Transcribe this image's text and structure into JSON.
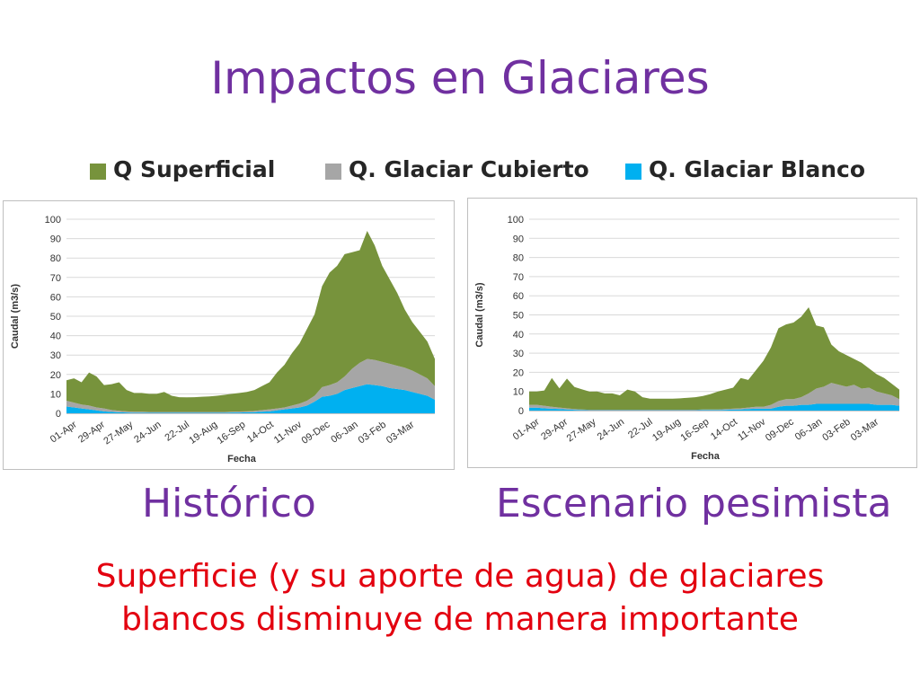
{
  "slide": {
    "title": "Impactos en Glaciares",
    "caption_left": "Histórico",
    "caption_right": "Escenario pesimista",
    "note_line1": "Superficie (y su aporte de agua) de glaciares",
    "note_line2": "blancos disminuye de manera importante"
  },
  "legend": [
    {
      "name": "Q Superficial",
      "color": "#77933c"
    },
    {
      "name": "Q. Glaciar Cubierto",
      "color": "#a6a6a6"
    },
    {
      "name": "Q. Glaciar Blanco",
      "color": "#00b0f0"
    }
  ],
  "chart_data": [
    {
      "type": "area",
      "stacked": true,
      "xlabel": "Fecha",
      "ylabel": "Caudal (m3/s)",
      "ylim": [
        0,
        100
      ],
      "yticks": [
        0,
        10,
        20,
        30,
        40,
        50,
        60,
        70,
        80,
        90,
        100
      ],
      "grid": true,
      "tick_labels": [
        "01-Apr",
        "29-Apr",
        "27-May",
        "24-Jun",
        "22-Jul",
        "19-Aug",
        "16-Sep",
        "14-Oct",
        "11-Nov",
        "09-Dec",
        "06-Jan",
        "03-Feb",
        "03-Mar"
      ],
      "series": [
        {
          "name": "Q. Glaciar Blanco",
          "color": "#00b0f0",
          "values": [
            3.5,
            3,
            2.5,
            2,
            1.5,
            1,
            0.7,
            0.5,
            0.4,
            0.3,
            0.3,
            0.3,
            0.3,
            0.3,
            0.3,
            0.3,
            0.3,
            0.3,
            0.3,
            0.3,
            0.3,
            0.3,
            0.4,
            0.4,
            0.5,
            0.6,
            0.8,
            1,
            1.5,
            2,
            2.5,
            3,
            4,
            6,
            8.5,
            9,
            10,
            12,
            13,
            14,
            15,
            14.5,
            14,
            13,
            12.5,
            12,
            11,
            10,
            9,
            7
          ]
        },
        {
          "name": "Q. Glaciar Cubierto",
          "color": "#a6a6a6",
          "values": [
            3,
            2.5,
            2,
            2,
            1.5,
            1.5,
            1,
            0.8,
            0.6,
            0.5,
            0.5,
            0.4,
            0.4,
            0.4,
            0.4,
            0.4,
            0.4,
            0.4,
            0.4,
            0.4,
            0.4,
            0.4,
            0.4,
            0.5,
            0.5,
            0.6,
            0.8,
            1,
            1,
            1,
            1.5,
            2,
            2.5,
            3,
            5,
            5.5,
            6,
            7,
            10,
            12,
            13,
            13,
            12.5,
            12.5,
            12,
            11.5,
            11,
            10,
            9,
            7
          ]
        },
        {
          "name": "Q Superficial",
          "color": "#77933c",
          "values": [
            10.5,
            12.5,
            11.5,
            17,
            16,
            12,
            13.3,
            14.7,
            11,
            9.7,
            9.7,
            9.3,
            9.3,
            10.3,
            8.3,
            7.6,
            7.5,
            7.6,
            7.8,
            8,
            8.3,
            8.8,
            9.2,
            9.6,
            10,
            10.8,
            12.4,
            14,
            18.5,
            22,
            27,
            31,
            37,
            42,
            52,
            58,
            60,
            63,
            60,
            58,
            66,
            59,
            49.5,
            43.5,
            37.5,
            30,
            25,
            22,
            19,
            14
          ]
        }
      ]
    },
    {
      "type": "area",
      "stacked": true,
      "xlabel": "Fecha",
      "ylabel": "Caudal (m3/s)",
      "ylim": [
        0,
        100
      ],
      "yticks": [
        0,
        10,
        20,
        30,
        40,
        50,
        60,
        70,
        80,
        90,
        100
      ],
      "grid": true,
      "tick_labels": [
        "01-Apr",
        "29-Apr",
        "27-May",
        "24-Jun",
        "22-Jul",
        "19-Aug",
        "16-Sep",
        "14-Oct",
        "11-Nov",
        "09-Dec",
        "06-Jan",
        "03-Feb",
        "03-Mar"
      ],
      "series": [
        {
          "name": "Q. Glaciar Blanco",
          "color": "#00b0f0",
          "values": [
            1.5,
            1.5,
            1.2,
            1,
            0.8,
            0.6,
            0.4,
            0.3,
            0.2,
            0.2,
            0.2,
            0.2,
            0.2,
            0.2,
            0.2,
            0.2,
            0.2,
            0.2,
            0.2,
            0.2,
            0.2,
            0.2,
            0.2,
            0.3,
            0.3,
            0.3,
            0.4,
            0.5,
            0.6,
            0.8,
            1,
            1,
            1,
            2,
            2.5,
            2.5,
            3,
            3,
            3.5,
            3.5,
            3.5,
            3.5,
            3.5,
            3.5,
            3.5,
            3.5,
            3,
            3,
            3,
            2.5
          ]
        },
        {
          "name": "Q. Glaciar Cubierto",
          "color": "#a6a6a6",
          "values": [
            1.5,
            1.5,
            1.3,
            1,
            0.8,
            0.6,
            0.4,
            0.3,
            0.2,
            0.2,
            0.2,
            0.2,
            0.2,
            0.2,
            0.2,
            0.2,
            0.2,
            0.2,
            0.2,
            0.2,
            0.2,
            0.2,
            0.2,
            0.3,
            0.3,
            0.3,
            0.4,
            0.5,
            0.6,
            0.8,
            1,
            1,
            2,
            3,
            3.5,
            3.5,
            4,
            6,
            8,
            9,
            11,
            10,
            9,
            10,
            8,
            8.5,
            7,
            6,
            5,
            3.5
          ]
        },
        {
          "name": "Q Superficial",
          "color": "#77933c",
          "values": [
            7,
            7,
            8,
            15,
            10,
            15.5,
            11.5,
            10.5,
            9.5,
            9.6,
            8.6,
            8.6,
            7.6,
            10.6,
            9.6,
            6.6,
            5.8,
            5.8,
            5.8,
            5.8,
            6,
            6.3,
            6.6,
            7,
            8,
            9.4,
            10.2,
            11,
            15.8,
            14.4,
            19,
            24,
            30,
            38,
            39,
            40,
            42,
            45,
            33,
            31,
            20,
            17.5,
            16.5,
            13.5,
            13.5,
            10,
            9,
            8,
            6,
            5
          ]
        }
      ]
    }
  ]
}
